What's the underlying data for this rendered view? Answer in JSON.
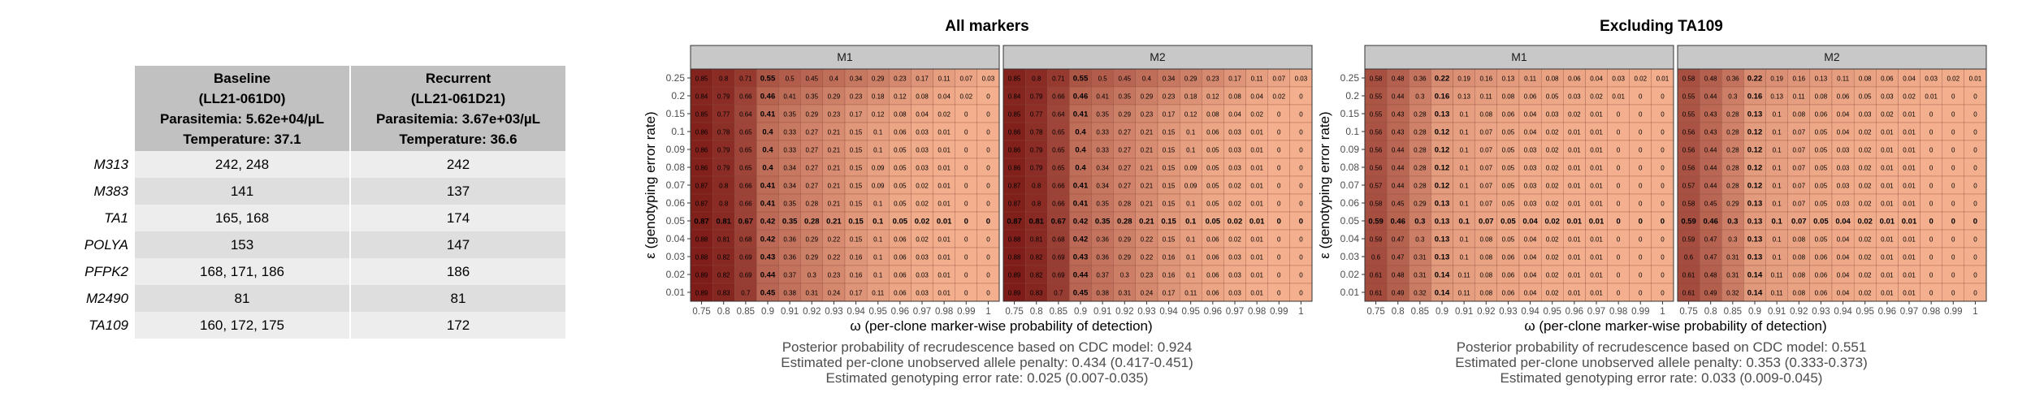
{
  "table": {
    "headers": [
      "Baseline\n(LL21-061D0)\nParasitemia: 5.62e+04/µL\nTemperature: 37.1",
      "Recurrent\n(LL21-061D21)\nParasitemia: 3.67e+03/µL\nTemperature: 36.6"
    ],
    "rows": [
      {
        "marker": "M313",
        "baseline": "242, 248",
        "recurrent": "242"
      },
      {
        "marker": "M383",
        "baseline": "141",
        "recurrent": "137"
      },
      {
        "marker": "TA1",
        "baseline": "165, 168",
        "recurrent": "174"
      },
      {
        "marker": "POLYA",
        "baseline": "153",
        "recurrent": "147"
      },
      {
        "marker": "PFPK2",
        "baseline": "168, 171, 186",
        "recurrent": "186"
      },
      {
        "marker": "M2490",
        "baseline": "81",
        "recurrent": "81"
      },
      {
        "marker": "TA109",
        "baseline": "160, 172, 175",
        "recurrent": "172"
      }
    ]
  },
  "chart_data": [
    {
      "type": "heatmap",
      "title": "All markers",
      "panels": [
        "M1",
        "M2"
      ],
      "xlabel": "ω (per-clone marker-wise probability of detection)",
      "ylabel": "ε (genotyping error rate)",
      "x": [
        0.75,
        0.8,
        0.85,
        0.9,
        0.91,
        0.92,
        0.93,
        0.94,
        0.95,
        0.96,
        0.97,
        0.98,
        0.99,
        1
      ],
      "x_tick_labels": [
        "0.75",
        "0.8",
        "0.85",
        "0.9",
        "0.91",
        "0.92",
        "0.93",
        "0.94",
        "0.95",
        "0.96",
        "0.97",
        "0.98",
        "0.99",
        "1"
      ],
      "y": [
        0.25,
        0.2,
        0.15,
        0.1,
        0.09,
        0.08,
        0.07,
        0.06,
        0.05,
        0.04,
        0.03,
        0.02,
        0.01
      ],
      "y_tick_labels": [
        "0.25",
        "0.2",
        "0.15",
        "0.1",
        "0.09",
        "0.08",
        "0.07",
        "0.06",
        "0.05",
        "0.04",
        "0.03",
        "0.02",
        "0.01"
      ],
      "bold_x": 0.9,
      "bold_y": 0.05,
      "values": {
        "M1": [
          [
            0.85,
            0.8,
            0.71,
            0.55,
            0.5,
            0.45,
            0.4,
            0.34,
            0.29,
            0.23,
            0.17,
            0.11,
            0.07,
            0.03
          ],
          [
            0.84,
            0.79,
            0.66,
            0.46,
            0.41,
            0.35,
            0.29,
            0.23,
            0.18,
            0.12,
            0.08,
            0.04,
            0.02,
            0
          ],
          [
            0.85,
            0.77,
            0.64,
            0.41,
            0.35,
            0.29,
            0.23,
            0.17,
            0.12,
            0.08,
            0.04,
            0.02,
            0,
            0
          ],
          [
            0.86,
            0.78,
            0.65,
            0.4,
            0.33,
            0.27,
            0.21,
            0.15,
            0.1,
            0.06,
            0.03,
            0.01,
            0,
            0
          ],
          [
            0.86,
            0.79,
            0.65,
            0.4,
            0.33,
            0.27,
            0.21,
            0.15,
            0.1,
            0.05,
            0.03,
            0.01,
            0,
            0
          ],
          [
            0.86,
            0.79,
            0.65,
            0.4,
            0.34,
            0.27,
            0.21,
            0.15,
            0.09,
            0.05,
            0.03,
            0.01,
            0,
            0
          ],
          [
            0.87,
            0.8,
            0.66,
            0.41,
            0.34,
            0.27,
            0.21,
            0.15,
            0.09,
            0.05,
            0.02,
            0.01,
            0,
            0
          ],
          [
            0.87,
            0.8,
            0.66,
            0.41,
            0.35,
            0.28,
            0.21,
            0.15,
            0.1,
            0.05,
            0.02,
            0.01,
            0,
            0
          ],
          [
            0.87,
            0.81,
            0.67,
            0.42,
            0.35,
            0.28,
            0.21,
            0.15,
            0.1,
            0.05,
            0.02,
            0.01,
            0,
            0
          ],
          [
            0.88,
            0.81,
            0.68,
            0.42,
            0.36,
            0.29,
            0.22,
            0.15,
            0.1,
            0.06,
            0.02,
            0.01,
            0,
            0
          ],
          [
            0.88,
            0.82,
            0.69,
            0.43,
            0.36,
            0.29,
            0.22,
            0.16,
            0.1,
            0.06,
            0.03,
            0.01,
            0,
            0
          ],
          [
            0.89,
            0.82,
            0.69,
            0.44,
            0.37,
            0.3,
            0.23,
            0.16,
            0.1,
            0.06,
            0.03,
            0.01,
            0,
            0
          ],
          [
            0.89,
            0.83,
            0.7,
            0.45,
            0.38,
            0.31,
            0.24,
            0.17,
            0.11,
            0.06,
            0.03,
            0.01,
            0,
            0
          ]
        ],
        "M2": [
          [
            0.85,
            0.8,
            0.71,
            0.55,
            0.5,
            0.45,
            0.4,
            0.34,
            0.29,
            0.23,
            0.17,
            0.11,
            0.07,
            0.03
          ],
          [
            0.84,
            0.79,
            0.66,
            0.46,
            0.41,
            0.35,
            0.29,
            0.23,
            0.18,
            0.12,
            0.08,
            0.04,
            0.02,
            0
          ],
          [
            0.85,
            0.77,
            0.64,
            0.41,
            0.35,
            0.29,
            0.23,
            0.17,
            0.12,
            0.08,
            0.04,
            0.02,
            0,
            0
          ],
          [
            0.86,
            0.78,
            0.65,
            0.4,
            0.33,
            0.27,
            0.21,
            0.15,
            0.1,
            0.06,
            0.03,
            0.01,
            0,
            0
          ],
          [
            0.86,
            0.79,
            0.65,
            0.4,
            0.33,
            0.27,
            0.21,
            0.15,
            0.1,
            0.05,
            0.03,
            0.01,
            0,
            0
          ],
          [
            0.86,
            0.79,
            0.65,
            0.4,
            0.34,
            0.27,
            0.21,
            0.15,
            0.09,
            0.05,
            0.03,
            0.01,
            0,
            0
          ],
          [
            0.87,
            0.8,
            0.66,
            0.41,
            0.34,
            0.27,
            0.21,
            0.15,
            0.09,
            0.05,
            0.02,
            0.01,
            0,
            0
          ],
          [
            0.87,
            0.8,
            0.66,
            0.41,
            0.35,
            0.28,
            0.21,
            0.15,
            0.1,
            0.05,
            0.02,
            0.01,
            0,
            0
          ],
          [
            0.87,
            0.81,
            0.67,
            0.42,
            0.35,
            0.28,
            0.21,
            0.15,
            0.1,
            0.05,
            0.02,
            0.01,
            0,
            0
          ],
          [
            0.88,
            0.81,
            0.68,
            0.42,
            0.36,
            0.29,
            0.22,
            0.15,
            0.1,
            0.06,
            0.02,
            0.01,
            0,
            0
          ],
          [
            0.88,
            0.82,
            0.69,
            0.43,
            0.36,
            0.29,
            0.22,
            0.16,
            0.1,
            0.06,
            0.03,
            0.01,
            0,
            0
          ],
          [
            0.89,
            0.82,
            0.69,
            0.44,
            0.37,
            0.3,
            0.23,
            0.16,
            0.1,
            0.06,
            0.03,
            0.01,
            0,
            0
          ],
          [
            0.89,
            0.83,
            0.7,
            0.45,
            0.38,
            0.31,
            0.24,
            0.17,
            0.11,
            0.06,
            0.03,
            0.01,
            0,
            0
          ]
        ]
      },
      "captions": [
        "Posterior probability of recrudescence based on CDC model: 0.924",
        "Estimated per-clone unobserved allele penalty: 0.434 (0.417-0.451)",
        "Estimated genotyping error rate: 0.025 (0.007-0.035)"
      ],
      "colors": {
        "low": "#f4b08e",
        "high": "#6f0a0a",
        "strip": "#c8c8c8"
      }
    },
    {
      "type": "heatmap",
      "title": "Excluding TA109",
      "panels": [
        "M1",
        "M2"
      ],
      "xlabel": "ω (per-clone marker-wise probability of detection)",
      "ylabel": "ε (genotyping error rate)",
      "x": [
        0.75,
        0.8,
        0.85,
        0.9,
        0.91,
        0.92,
        0.93,
        0.94,
        0.95,
        0.96,
        0.97,
        0.98,
        0.99,
        1
      ],
      "x_tick_labels": [
        "0.75",
        "0.8",
        "0.85",
        "0.9",
        "0.91",
        "0.92",
        "0.93",
        "0.94",
        "0.95",
        "0.96",
        "0.97",
        "0.98",
        "0.99",
        "1"
      ],
      "y": [
        0.25,
        0.2,
        0.15,
        0.1,
        0.09,
        0.08,
        0.07,
        0.06,
        0.05,
        0.04,
        0.03,
        0.02,
        0.01
      ],
      "y_tick_labels": [
        "0.25",
        "0.2",
        "0.15",
        "0.1",
        "0.09",
        "0.08",
        "0.07",
        "0.06",
        "0.05",
        "0.04",
        "0.03",
        "0.02",
        "0.01"
      ],
      "bold_x": 0.9,
      "bold_y": 0.05,
      "values": {
        "M1": [
          [
            0.58,
            0.48,
            0.36,
            0.22,
            0.19,
            0.16,
            0.13,
            0.11,
            0.08,
            0.06,
            0.04,
            0.03,
            0.02,
            0.01
          ],
          [
            0.55,
            0.44,
            0.3,
            0.16,
            0.13,
            0.11,
            0.08,
            0.06,
            0.05,
            0.03,
            0.02,
            0.01,
            0,
            0
          ],
          [
            0.55,
            0.43,
            0.28,
            0.13,
            0.1,
            0.08,
            0.06,
            0.04,
            0.03,
            0.02,
            0.01,
            0,
            0,
            0
          ],
          [
            0.56,
            0.43,
            0.28,
            0.12,
            0.1,
            0.07,
            0.05,
            0.04,
            0.02,
            0.01,
            0.01,
            0,
            0,
            0
          ],
          [
            0.56,
            0.44,
            0.28,
            0.12,
            0.1,
            0.07,
            0.05,
            0.03,
            0.02,
            0.01,
            0.01,
            0,
            0,
            0
          ],
          [
            0.56,
            0.44,
            0.28,
            0.12,
            0.1,
            0.07,
            0.05,
            0.03,
            0.02,
            0.01,
            0.01,
            0,
            0,
            0
          ],
          [
            0.57,
            0.44,
            0.28,
            0.12,
            0.1,
            0.07,
            0.05,
            0.03,
            0.02,
            0.01,
            0.01,
            0,
            0,
            0
          ],
          [
            0.58,
            0.45,
            0.29,
            0.13,
            0.1,
            0.07,
            0.05,
            0.03,
            0.02,
            0.01,
            0.01,
            0,
            0,
            0
          ],
          [
            0.59,
            0.46,
            0.3,
            0.13,
            0.1,
            0.07,
            0.05,
            0.04,
            0.02,
            0.01,
            0.01,
            0,
            0,
            0
          ],
          [
            0.59,
            0.47,
            0.3,
            0.13,
            0.1,
            0.08,
            0.05,
            0.04,
            0.02,
            0.01,
            0.01,
            0,
            0,
            0
          ],
          [
            0.6,
            0.47,
            0.31,
            0.13,
            0.1,
            0.08,
            0.06,
            0.04,
            0.02,
            0.01,
            0.01,
            0,
            0,
            0
          ],
          [
            0.61,
            0.48,
            0.31,
            0.14,
            0.11,
            0.08,
            0.06,
            0.04,
            0.02,
            0.01,
            0.01,
            0,
            0,
            0
          ],
          [
            0.61,
            0.49,
            0.32,
            0.14,
            0.11,
            0.08,
            0.06,
            0.04,
            0.02,
            0.01,
            0.01,
            0,
            0,
            0
          ]
        ],
        "M2": [
          [
            0.58,
            0.48,
            0.36,
            0.22,
            0.19,
            0.16,
            0.13,
            0.11,
            0.08,
            0.06,
            0.04,
            0.03,
            0.02,
            0.01
          ],
          [
            0.55,
            0.44,
            0.3,
            0.16,
            0.13,
            0.11,
            0.08,
            0.06,
            0.05,
            0.03,
            0.02,
            0.01,
            0,
            0
          ],
          [
            0.55,
            0.43,
            0.28,
            0.13,
            0.1,
            0.08,
            0.06,
            0.04,
            0.03,
            0.02,
            0.01,
            0,
            0,
            0
          ],
          [
            0.56,
            0.43,
            0.28,
            0.12,
            0.1,
            0.07,
            0.05,
            0.04,
            0.02,
            0.01,
            0.01,
            0,
            0,
            0
          ],
          [
            0.56,
            0.44,
            0.28,
            0.12,
            0.1,
            0.07,
            0.05,
            0.03,
            0.02,
            0.01,
            0.01,
            0,
            0,
            0
          ],
          [
            0.56,
            0.44,
            0.28,
            0.12,
            0.1,
            0.07,
            0.05,
            0.03,
            0.02,
            0.01,
            0.01,
            0,
            0,
            0
          ],
          [
            0.57,
            0.44,
            0.28,
            0.12,
            0.1,
            0.07,
            0.05,
            0.03,
            0.02,
            0.01,
            0.01,
            0,
            0,
            0
          ],
          [
            0.58,
            0.45,
            0.29,
            0.13,
            0.1,
            0.07,
            0.05,
            0.03,
            0.02,
            0.01,
            0.01,
            0,
            0,
            0
          ],
          [
            0.59,
            0.46,
            0.3,
            0.13,
            0.1,
            0.07,
            0.05,
            0.04,
            0.02,
            0.01,
            0.01,
            0,
            0,
            0
          ],
          [
            0.59,
            0.47,
            0.3,
            0.13,
            0.1,
            0.08,
            0.05,
            0.04,
            0.02,
            0.01,
            0.01,
            0,
            0,
            0
          ],
          [
            0.6,
            0.47,
            0.31,
            0.13,
            0.1,
            0.08,
            0.06,
            0.04,
            0.02,
            0.01,
            0.01,
            0,
            0,
            0
          ],
          [
            0.61,
            0.48,
            0.31,
            0.14,
            0.11,
            0.08,
            0.06,
            0.04,
            0.02,
            0.01,
            0.01,
            0,
            0,
            0
          ],
          [
            0.61,
            0.49,
            0.32,
            0.14,
            0.11,
            0.08,
            0.06,
            0.04,
            0.02,
            0.01,
            0.01,
            0,
            0,
            0
          ]
        ]
      },
      "captions": [
        "Posterior probability of recrudescence based on CDC model: 0.551",
        "Estimated per-clone unobserved allele penalty: 0.353 (0.333-0.373)",
        "Estimated genotyping error rate: 0.033 (0.009-0.045)"
      ],
      "colors": {
        "low": "#f4b08e",
        "high": "#6f0a0a",
        "strip": "#c8c8c8"
      }
    }
  ]
}
